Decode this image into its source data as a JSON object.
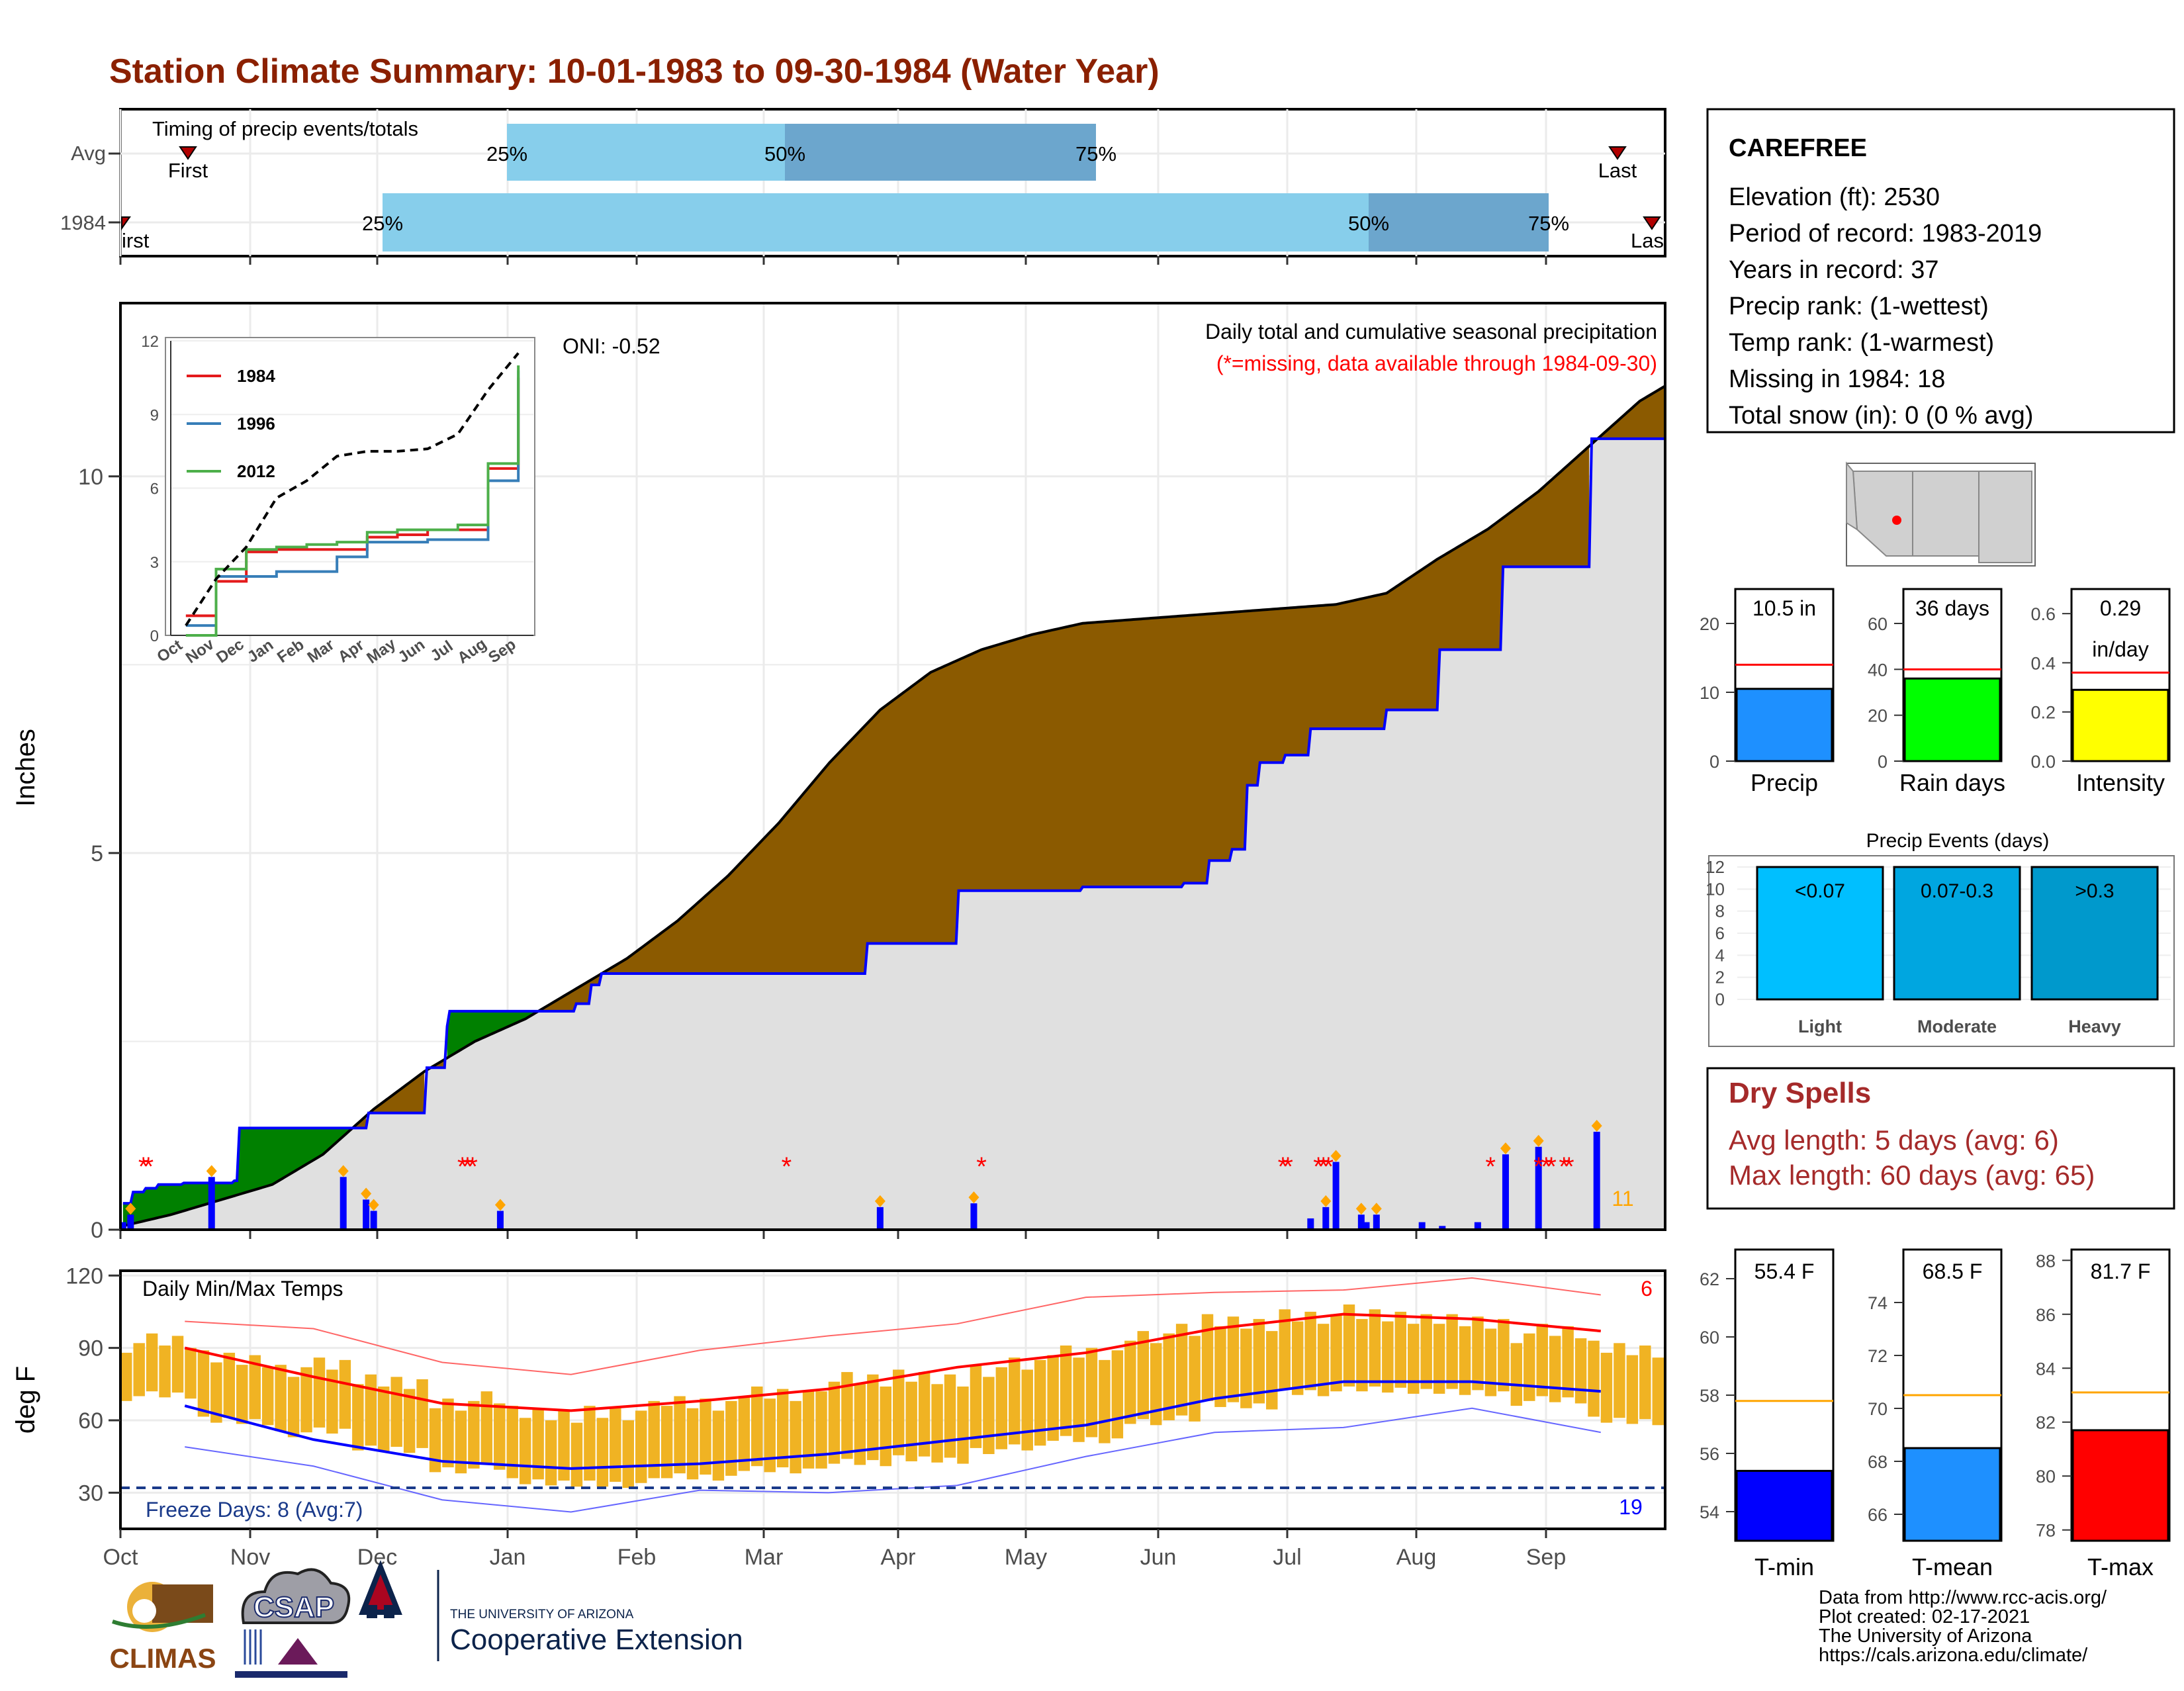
{
  "title": "Station Climate Summary: 10-01-1983 to 09-30-1984 (Water Year)",
  "colors": {
    "title": "#8B2000",
    "avg_precip": "#8B5A00",
    "deficit_area": "#8B5A00",
    "surplus_area": "#008000",
    "cum_1984": "#0000FF",
    "base_fill": "#E0E0E0",
    "quartile_light": "#87CEEB",
    "quartile_dark": "#6CA6CD",
    "missing": "#FF0000",
    "tmax_line": "#FF0000",
    "tmin_line": "#0000FF",
    "temp_bar": "#F0B323",
    "dry_spells": "#A52A2A"
  },
  "timing": {
    "label": "Timing of precip events/totals",
    "rows": [
      "Avg",
      "1984"
    ],
    "first_label": "First",
    "last_label": "Last",
    "first_label_clipped": "irst",
    "last_label_clipped": "Las",
    "q25": "25%",
    "q50": "50%",
    "q75": "75%"
  },
  "main": {
    "ylabel": "Inches",
    "legend_title": "Daily total and cumulative seasonal precipitation",
    "legend_note": "(*=missing, data available through 1984-09-30)",
    "oni": "ONI: -0.52",
    "count_label": "11",
    "yticks": [
      "0",
      "5",
      "10"
    ]
  },
  "inset": {
    "yticks": [
      "0",
      "3",
      "6",
      "9",
      "12"
    ],
    "months": [
      "Oct",
      "Nov",
      "Dec",
      "Jan",
      "Feb",
      "Mar",
      "Apr",
      "May",
      "Jun",
      "Jul",
      "Aug",
      "Sep"
    ],
    "legend": [
      "1984",
      "1996",
      "2012"
    ]
  },
  "temps": {
    "ylabel": "deg F",
    "label": "Daily Min/Max Temps",
    "freeze": "Freeze Days: 8 (Avg:7)",
    "count_max": "6",
    "count_min": "19",
    "yticks": [
      "30",
      "60",
      "90",
      "120"
    ]
  },
  "months": [
    "Oct",
    "Nov",
    "Dec",
    "Jan",
    "Feb",
    "Mar",
    "Apr",
    "May",
    "Jun",
    "Jul",
    "Aug",
    "Sep"
  ],
  "station": {
    "name": "CAREFREE",
    "lines": [
      "Elevation (ft): 2530",
      "Period of record: 1983-2019",
      "Years in record: 37",
      "Precip rank:  (1-wettest)",
      "Temp rank:  (1-warmest)",
      "Missing in 1984: 18",
      "Total snow (in): 0 (0 % avg)"
    ]
  },
  "mini_bars": [
    {
      "label": "Precip",
      "value_text": "10.5 in",
      "value": 10.5,
      "avg": 14,
      "ymax": 25,
      "ticks": [
        "0",
        "10",
        "20"
      ],
      "color": "#1E90FF"
    },
    {
      "label": "Rain days",
      "value_text": "36 days",
      "value": 36,
      "avg": 40,
      "ymax": 75,
      "ticks": [
        "0",
        "20",
        "40",
        "60"
      ],
      "color": "#00FF00"
    },
    {
      "label": "Intensity",
      "value_text": "0.29",
      "value_text2": "in/day",
      "value": 0.29,
      "avg": 0.36,
      "ymax": 0.7,
      "ticks": [
        "0.0",
        "0.2",
        "0.4",
        "0.6"
      ],
      "color": "#FFFF00"
    }
  ],
  "events": {
    "title": "Precip Events (days)",
    "yticks": [
      "0",
      "2",
      "4",
      "6",
      "8",
      "10",
      "12"
    ],
    "bars": [
      {
        "label": "Light",
        "range": "<0.07",
        "value": 12,
        "color": "#00BFFF"
      },
      {
        "label": "Moderate",
        "range": "0.07-0.3",
        "value": 12,
        "color": "#00A6E0"
      },
      {
        "label": "Heavy",
        "range": ">0.3",
        "value": 12,
        "color": "#0099CC"
      }
    ]
  },
  "dry_spells": {
    "title": "Dry Spells",
    "avg_line": "Avg length: 5 days (avg: 6)",
    "max_line": "Max length: 60 days (avg: 65)"
  },
  "temp_bars": [
    {
      "label": "T-min",
      "value_text": "55.4 F",
      "value": 55.4,
      "avg": 57.8,
      "ymin": 53,
      "ymax": 63,
      "ticks": [
        "54",
        "56",
        "58",
        "60",
        "62"
      ],
      "color": "#0000FF"
    },
    {
      "label": "T-mean",
      "value_text": "68.5 F",
      "value": 68.5,
      "avg": 70.5,
      "ymin": 65,
      "ymax": 76,
      "ticks": [
        "66",
        "68",
        "70",
        "72",
        "74"
      ],
      "color": "#1E90FF"
    },
    {
      "label": "T-max",
      "value_text": "81.7 F",
      "value": 81.7,
      "avg": 83.1,
      "ymin": 77.6,
      "ymax": 88.4,
      "ticks": [
        "78",
        "80",
        "82",
        "84",
        "86",
        "88"
      ],
      "color": "#FF0000"
    }
  ],
  "footer": {
    "logos": [
      "CLIMAS",
      "CSAP"
    ],
    "ua_small": "THE UNIVERSITY OF ARIZONA",
    "ua_big": "Cooperative Extension",
    "credits": [
      "Data from http://www.rcc-acis.org/",
      "Plot created: 02-17-2021",
      "The University of Arizona",
      "https://cals.arizona.edu/climate/"
    ]
  },
  "chart_data": [
    {
      "type": "area",
      "title": "Daily total and cumulative seasonal precipitation",
      "ylabel": "Inches",
      "ylim": [
        0,
        12.3
      ],
      "x_unit": "day of water year (1 = Oct 1)",
      "series": [
        {
          "name": "1984",
          "points": [
            [
              1,
              0.35
            ],
            [
              5,
              0.5
            ],
            [
              10,
              0.55
            ],
            [
              15,
              0.6
            ],
            [
              25,
              0.62
            ],
            [
              45,
              0.65
            ],
            [
              47,
              1.35
            ],
            [
              60,
              1.35
            ],
            [
              90,
              1.35
            ],
            [
              97,
              1.35
            ],
            [
              98,
              1.55
            ],
            [
              120,
              1.55
            ],
            [
              121,
              2.15
            ],
            [
              125,
              2.15
            ],
            [
              129,
              2.7
            ],
            [
              130,
              2.9
            ],
            [
              150,
              2.9
            ],
            [
              170,
              2.9
            ],
            [
              180,
              3.0
            ],
            [
              186,
              3.25
            ],
            [
              190,
              3.4
            ],
            [
              210,
              3.4
            ],
            [
              240,
              3.4
            ],
            [
              280,
              3.4
            ],
            [
              294,
              3.4
            ],
            [
              295,
              3.8
            ],
            [
              330,
              3.8
            ],
            [
              331,
              4.5
            ],
            [
              370,
              4.5
            ],
            [
              380,
              4.55
            ],
            [
              400,
              4.55
            ],
            [
              420,
              4.6
            ],
            [
              428,
              4.6
            ],
            [
              430,
              4.9
            ],
            [
              439,
              5.05
            ],
            [
              445,
              5.9
            ],
            [
              450,
              6.2
            ],
            [
              460,
              6.3
            ],
            [
              470,
              6.65
            ],
            [
              500,
              6.9
            ],
            [
              520,
              6.9
            ],
            [
              521,
              7.7
            ],
            [
              545,
              7.7
            ],
            [
              546,
              8.8
            ],
            [
              580,
              8.8
            ],
            [
              581,
              10.5
            ],
            [
              610,
              10.5
            ]
          ]
        },
        {
          "name": "Avg",
          "points": [
            [
              1,
              0.05
            ],
            [
              20,
              0.2
            ],
            [
              40,
              0.4
            ],
            [
              60,
              0.6
            ],
            [
              80,
              1.0
            ],
            [
              100,
              1.6
            ],
            [
              120,
              2.1
            ],
            [
              140,
              2.5
            ],
            [
              160,
              2.8
            ],
            [
              180,
              3.2
            ],
            [
              200,
              3.6
            ],
            [
              220,
              4.1
            ],
            [
              240,
              4.7
            ],
            [
              260,
              5.4
            ],
            [
              280,
              6.2
            ],
            [
              300,
              6.9
            ],
            [
              320,
              7.4
            ],
            [
              340,
              7.7
            ],
            [
              360,
              7.9
            ],
            [
              380,
              8.05
            ],
            [
              400,
              8.1
            ],
            [
              420,
              8.15
            ],
            [
              440,
              8.2
            ],
            [
              460,
              8.25
            ],
            [
              480,
              8.3
            ],
            [
              500,
              8.45
            ],
            [
              520,
              8.9
            ],
            [
              540,
              9.3
            ],
            [
              560,
              9.8
            ],
            [
              580,
              10.4
            ],
            [
              600,
              11.0
            ],
            [
              610,
              11.2
            ]
          ]
        }
      ],
      "daily_bars": [
        [
          1,
          0.1
        ],
        [
          4,
          0.2
        ],
        [
          36,
          0.7
        ],
        [
          88,
          0.7
        ],
        [
          97,
          0.4
        ],
        [
          100,
          0.25
        ],
        [
          150,
          0.25
        ],
        [
          300,
          0.3
        ],
        [
          337,
          0.35
        ],
        [
          470,
          0.15
        ],
        [
          476,
          0.3
        ],
        [
          480,
          0.9
        ],
        [
          490,
          0.2
        ],
        [
          492,
          0.1
        ],
        [
          496,
          0.2
        ],
        [
          514,
          0.1
        ],
        [
          522,
          0.05
        ],
        [
          536,
          0.1
        ],
        [
          547,
          1.0
        ],
        [
          560,
          1.1
        ],
        [
          583,
          1.3
        ]
      ],
      "missing_days": [
        8,
        10,
        134,
        136,
        138,
        262,
        339,
        458,
        460,
        472,
        474,
        476,
        540,
        559,
        562,
        564,
        569,
        571
      ]
    },
    {
      "type": "line",
      "title": "inset cumulative precipitation",
      "ylim": [
        0,
        12
      ],
      "categories": [
        "Oct",
        "Nov",
        "Dec",
        "Jan",
        "Feb",
        "Mar",
        "Apr",
        "May",
        "Jun",
        "Jul",
        "Aug",
        "Sep"
      ],
      "series": [
        {
          "name": "1984",
          "values": [
            0.8,
            2.2,
            3.4,
            3.5,
            3.5,
            3.5,
            4.0,
            4.1,
            4.3,
            4.3,
            6.8,
            10.5
          ]
        },
        {
          "name": "1996",
          "values": [
            0.4,
            2.4,
            2.4,
            2.6,
            2.6,
            3.2,
            3.8,
            3.8,
            3.9,
            3.9,
            6.3,
            10.8
          ]
        },
        {
          "name": "2012",
          "values": [
            0.0,
            2.7,
            3.5,
            3.6,
            3.7,
            3.8,
            4.2,
            4.3,
            4.3,
            4.5,
            7.0,
            11.0
          ]
        },
        {
          "values": [
            0.4,
            2.3,
            3.6,
            5.6,
            6.3,
            7.3,
            7.5,
            7.5,
            7.6,
            8.2,
            10.0,
            11.5
          ]
        }
      ]
    },
    {
      "type": "line",
      "title": "Daily Min/Max Temps",
      "ylabel": "deg F",
      "ylim": [
        15,
        122
      ],
      "categories": [
        "Oct",
        "Nov",
        "Dec",
        "Jan",
        "Feb",
        "Mar",
        "Apr",
        "May",
        "Jun",
        "Jul",
        "Aug",
        "Sep"
      ],
      "series": [
        {
          "name": "Avg max",
          "values": [
            90,
            78,
            67,
            64,
            68,
            73,
            82,
            88,
            98,
            104,
            102,
            97
          ]
        },
        {
          "name": "Avg min",
          "values": [
            66,
            52,
            43,
            40,
            42,
            46,
            52,
            58,
            69,
            76,
            76,
            72
          ]
        },
        {
          "name": "Record max",
          "values": [
            104,
            95,
            84,
            82,
            86,
            95,
            103,
            108,
            113,
            117,
            116,
            112
          ]
        },
        {
          "name": "Record min",
          "values": [
            52,
            38,
            27,
            25,
            28,
            30,
            36,
            42,
            55,
            60,
            62,
            55
          ]
        }
      ],
      "daily_bars": [
        [
          70,
          92
        ],
        [
          60,
          86
        ],
        [
          55,
          82
        ],
        [
          48,
          76
        ],
        [
          40,
          68
        ],
        [
          34,
          62
        ],
        [
          34,
          64
        ],
        [
          36,
          66
        ],
        [
          40,
          72
        ],
        [
          42,
          76
        ],
        [
          44,
          78
        ],
        [
          48,
          82
        ],
        [
          52,
          88
        ],
        [
          60,
          96
        ],
        [
          66,
          100
        ],
        [
          72,
          104
        ],
        [
          72,
          102
        ],
        [
          72,
          102
        ],
        [
          68,
          96
        ],
        [
          60,
          90
        ]
      ]
    },
    {
      "type": "bar",
      "title": "Precip Events (days)",
      "categories": [
        "Light",
        "Moderate",
        "Heavy"
      ],
      "values": [
        12,
        12,
        12
      ]
    }
  ]
}
